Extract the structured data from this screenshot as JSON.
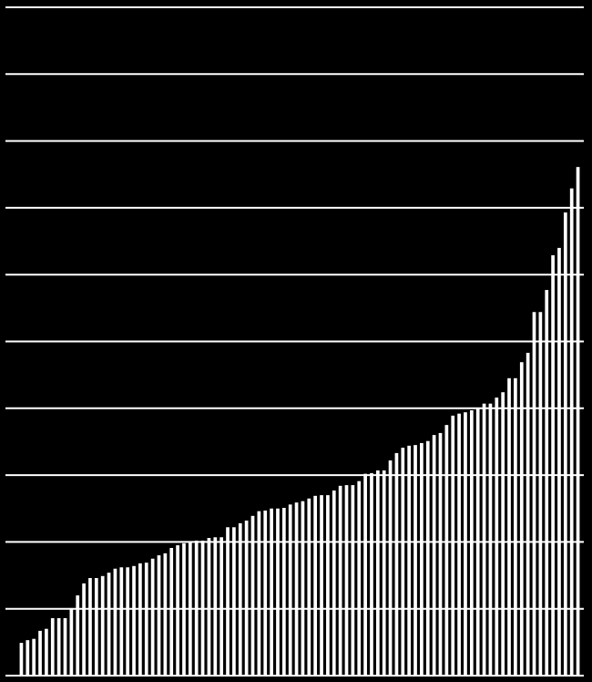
{
  "chart_data": {
    "type": "bar",
    "values": [
      0.49,
      0.53,
      0.55,
      0.67,
      0.7,
      0.86,
      0.86,
      0.86,
      1.01,
      1.2,
      1.38,
      1.46,
      1.46,
      1.49,
      1.54,
      1.6,
      1.62,
      1.62,
      1.64,
      1.68,
      1.69,
      1.75,
      1.8,
      1.83,
      1.91,
      1.95,
      1.98,
      2.01,
      2.02,
      2.02,
      2.06,
      2.07,
      2.07,
      2.22,
      2.22,
      2.28,
      2.32,
      2.39,
      2.46,
      2.47,
      2.5,
      2.5,
      2.51,
      2.56,
      2.59,
      2.61,
      2.65,
      2.69,
      2.7,
      2.7,
      2.77,
      2.84,
      2.85,
      2.85,
      2.91,
      3.02,
      3.03,
      3.07,
      3.07,
      3.22,
      3.33,
      3.41,
      3.44,
      3.45,
      3.48,
      3.51,
      3.6,
      3.63,
      3.75,
      3.89,
      3.92,
      3.94,
      3.97,
      4.01,
      4.07,
      4.07,
      4.16,
      4.24,
      4.45,
      4.45,
      4.69,
      4.83,
      5.44,
      5.44,
      5.77,
      6.29,
      6.4,
      6.93,
      7.29,
      7.61
    ],
    "color": "#ffffff",
    "background": "#000000",
    "ylim": [
      0,
      10
    ],
    "yticks": [
      0,
      1,
      2,
      3,
      4,
      5,
      6,
      7,
      8,
      9,
      10
    ],
    "grid": true
  }
}
